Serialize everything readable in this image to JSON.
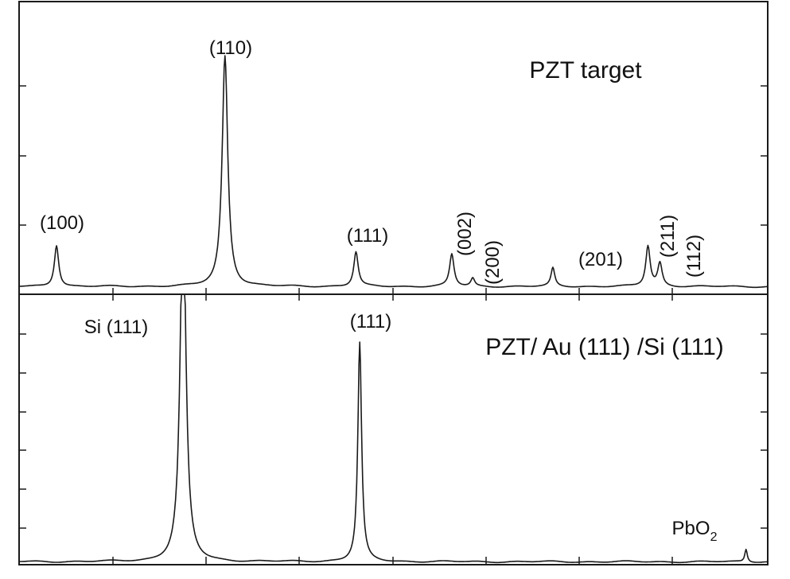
{
  "chart_data": [
    {
      "type": "line",
      "panel": "top",
      "title": "PZT target",
      "xlabel": "",
      "ylabel": "",
      "grid": false,
      "peaks": [
        {
          "label": "(100)",
          "x": 0.05,
          "y": 0.18,
          "width": 0.0035
        },
        {
          "label": "(110)",
          "x": 0.275,
          "y": 1.0,
          "width": 0.0045
        },
        {
          "label": "(111)",
          "x": 0.45,
          "y": 0.15,
          "width": 0.0035
        },
        {
          "label": "(002)",
          "x": 0.578,
          "y": 0.14,
          "width": 0.0035
        },
        {
          "label": "(200)",
          "x": 0.606,
          "y": 0.035,
          "width": 0.003
        },
        {
          "label": "(201)",
          "x": 0.713,
          "y": 0.08,
          "width": 0.003
        },
        {
          "label": "(211)",
          "x": 0.84,
          "y": 0.175,
          "width": 0.0035
        },
        {
          "label": "(112)",
          "x": 0.856,
          "y": 0.1,
          "width": 0.0035
        }
      ]
    },
    {
      "type": "line",
      "panel": "bottom",
      "title": "PZT/ Au (111) /Si (111)",
      "xlabel": "",
      "ylabel": "",
      "grid": false,
      "peaks": [
        {
          "label": "Si (111)",
          "x": 0.219,
          "y": 1.6,
          "width": 0.0045
        },
        {
          "label": "(111)",
          "x": 0.455,
          "y": 0.95,
          "width": 0.003
        },
        {
          "label": "PbO",
          "subscript": "2",
          "x": 0.971,
          "y": 0.055,
          "width": 0.002
        }
      ]
    }
  ]
}
